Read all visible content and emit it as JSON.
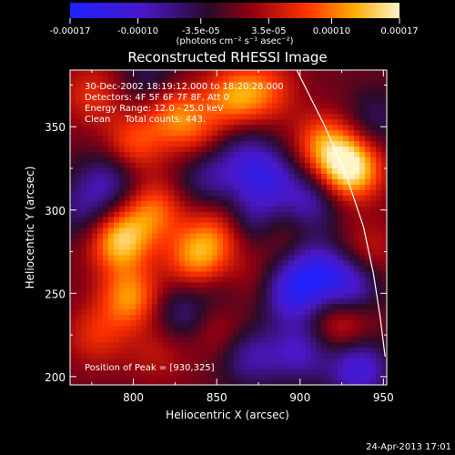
{
  "colorbar": {
    "tick_labels": [
      "-0.00017",
      "-0.00010",
      "-3.5e-05",
      "3.5e-05",
      "0.00010",
      "0.00017"
    ],
    "tick_values": [
      -0.00017,
      -0.0001,
      -3.5e-05,
      3.5e-05,
      0.0001,
      0.00017
    ],
    "range": [
      -0.00017,
      0.00017
    ],
    "unit_label": "(photons cm⁻² s⁻¹ asec⁻²)",
    "colors": [
      "#1e22ff",
      "#4a18c8",
      "#2a0a2a",
      "#900010",
      "#ff3300",
      "#ffaa00",
      "#fff5c8"
    ]
  },
  "chart_data": {
    "type": "heatmap",
    "title": "Reconstructed RHESSI Image",
    "xlabel": "Heliocentric X (arcsec)",
    "ylabel": "Heliocentric Y (arcsec)",
    "xlim": [
      762,
      952
    ],
    "ylim": [
      195,
      384
    ],
    "x_ticks": [
      800,
      850,
      900,
      950
    ],
    "y_ticks": [
      200,
      250,
      300,
      350
    ],
    "x_tick_labels": [
      "800",
      "850",
      "900",
      "950"
    ],
    "y_tick_labels": [
      "200",
      "250",
      "300",
      "350"
    ],
    "annotations": [
      "30-Dec-2002 18:19:12.000 to 18:20:28.000",
      "Detectors: 4F 5F 6F 7F 8F, Att 0",
      "Energy Range: 12.0 - 25.0 keV",
      "Clean     Total counts: 443."
    ],
    "peak_label": "Position of Peak = [930,325]",
    "peak": [
      930,
      325
    ],
    "limb_curve": [
      [
        898,
        384
      ],
      [
        915,
        350
      ],
      [
        928,
        320
      ],
      [
        938,
        290
      ],
      [
        944,
        262
      ],
      [
        948,
        236
      ],
      [
        951,
        212
      ]
    ],
    "sources": [
      {
        "x": 930,
        "y": 325,
        "amp": 0.00017
      },
      {
        "x": 915,
        "y": 340,
        "amp": 0.0001
      },
      {
        "x": 792,
        "y": 282,
        "amp": 0.00014
      },
      {
        "x": 798,
        "y": 248,
        "amp": 0.00011
      },
      {
        "x": 812,
        "y": 300,
        "amp": 9e-05
      },
      {
        "x": 838,
        "y": 272,
        "amp": 0.00011
      },
      {
        "x": 852,
        "y": 288,
        "amp": 7e-05
      },
      {
        "x": 800,
        "y": 340,
        "amp": 8e-05
      },
      {
        "x": 825,
        "y": 358,
        "amp": 9e-05
      },
      {
        "x": 860,
        "y": 368,
        "amp": 0.0001
      },
      {
        "x": 880,
        "y": 372,
        "amp": 7e-05
      },
      {
        "x": 840,
        "y": 345,
        "amp": 5e-05
      },
      {
        "x": 775,
        "y": 370,
        "amp": 6e-05
      },
      {
        "x": 778,
        "y": 225,
        "amp": 6e-05
      },
      {
        "x": 815,
        "y": 215,
        "amp": 4e-05
      },
      {
        "x": 850,
        "y": 230,
        "amp": 5e-05
      },
      {
        "x": 868,
        "y": 255,
        "amp": 5e-05
      },
      {
        "x": 888,
        "y": 290,
        "amp": 4e-05
      },
      {
        "x": 925,
        "y": 232,
        "amp": 7e-05
      },
      {
        "x": 940,
        "y": 275,
        "amp": 5e-05
      },
      {
        "x": 880,
        "y": 320,
        "amp": -0.0001
      },
      {
        "x": 905,
        "y": 305,
        "amp": -9e-05
      },
      {
        "x": 872,
        "y": 295,
        "amp": -8e-05
      },
      {
        "x": 845,
        "y": 320,
        "amp": -7e-05
      },
      {
        "x": 785,
        "y": 318,
        "amp": -8e-05
      },
      {
        "x": 770,
        "y": 300,
        "amp": -6e-05
      },
      {
        "x": 895,
        "y": 250,
        "amp": -0.00012
      },
      {
        "x": 910,
        "y": 265,
        "amp": -0.0001
      },
      {
        "x": 930,
        "y": 255,
        "amp": -0.00011
      },
      {
        "x": 935,
        "y": 205,
        "amp": -0.00012
      },
      {
        "x": 900,
        "y": 215,
        "amp": -9e-05
      },
      {
        "x": 870,
        "y": 212,
        "amp": -8e-05
      },
      {
        "x": 830,
        "y": 238,
        "amp": -7e-05
      },
      {
        "x": 858,
        "y": 250,
        "amp": -5e-05
      },
      {
        "x": 810,
        "y": 380,
        "amp": -5e-05
      },
      {
        "x": 865,
        "y": 335,
        "amp": -6e-05
      },
      {
        "x": 945,
        "y": 355,
        "amp": -5e-05
      }
    ]
  },
  "footer": {
    "timestamp": "24-Apr-2013 17:01"
  }
}
